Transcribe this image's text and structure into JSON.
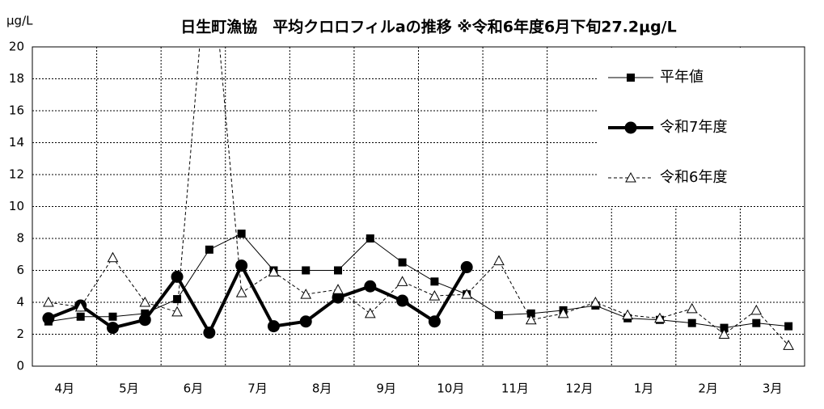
{
  "chart_data": {
    "type": "line",
    "title": "日生町漁協　平均クロロフィルaの推移 ※令和6年度6月下旬27.2μg/L",
    "y_label": "μg/L",
    "categories": [
      "4月",
      null,
      "5月",
      null,
      "6月",
      null,
      "7月",
      null,
      "8月",
      null,
      "9月",
      null,
      "10月",
      null,
      "11月",
      null,
      "12月",
      null,
      "1月",
      null,
      "2月",
      null,
      "3月",
      null
    ],
    "series": [
      {
        "name": "平年値",
        "color": "#000000",
        "marker": "square",
        "line_width": 1,
        "dash": false,
        "values": [
          2.8,
          3.1,
          3.1,
          3.3,
          4.2,
          7.3,
          8.3,
          6.0,
          6.0,
          6.0,
          8.0,
          6.5,
          5.3,
          4.5,
          3.2,
          3.3,
          3.5,
          3.8,
          3.0,
          2.9,
          2.7,
          2.4,
          2.7,
          2.5
        ]
      },
      {
        "name": "令和7年度",
        "color": "#000000",
        "marker": "circle",
        "line_width": 4,
        "dash": false,
        "values": [
          3.0,
          3.8,
          2.4,
          2.9,
          5.6,
          2.1,
          6.3,
          2.5,
          2.8,
          4.3,
          5.0,
          4.1,
          2.8,
          6.2,
          null,
          null,
          null,
          null,
          null,
          null,
          null,
          null,
          null,
          null
        ]
      },
      {
        "name": "令和6年度",
        "color": "#000000",
        "marker": "triangle",
        "line_width": 1,
        "dash": true,
        "values": [
          4.0,
          3.7,
          6.8,
          4.0,
          3.4,
          27.2,
          4.6,
          5.9,
          4.5,
          4.8,
          3.3,
          5.3,
          4.4,
          4.5,
          6.6,
          2.9,
          3.3,
          4.0,
          3.2,
          3.0,
          3.6,
          2.0,
          3.5,
          1.3
        ]
      }
    ],
    "ylim": [
      0,
      20
    ],
    "yticks": [
      0,
      2,
      4,
      6,
      8,
      10,
      12,
      14,
      16,
      18,
      20
    ],
    "grid": true,
    "legend": "upper right"
  }
}
